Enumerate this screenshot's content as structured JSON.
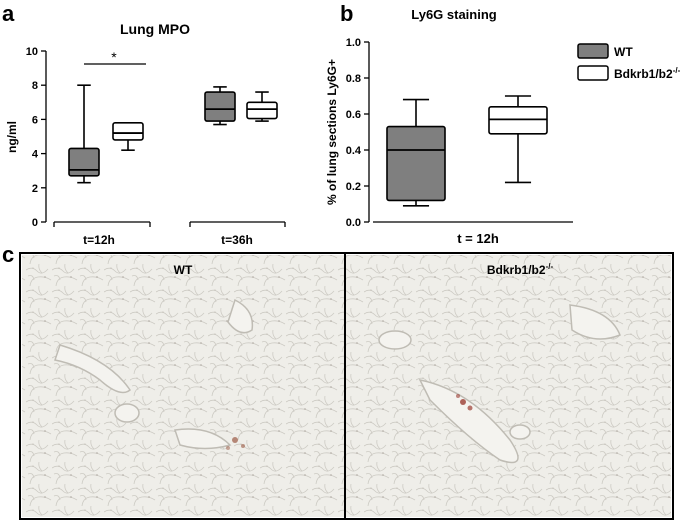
{
  "panel_labels": {
    "a": "a",
    "b": "b",
    "c": "c"
  },
  "legend": {
    "items": [
      {
        "label": "WT",
        "fill": "#7f7f7f"
      },
      {
        "label": "Bdkrb1/b2",
        "superscript": "-/-",
        "fill": "#ffffff"
      }
    ]
  },
  "chart_data": [
    {
      "type": "box",
      "title": "Lung MPO",
      "ylabel": "ng/ml",
      "xlabel": "",
      "ylim": [
        0,
        10
      ],
      "yticks": [
        0,
        2,
        4,
        6,
        8,
        10
      ],
      "groups": [
        {
          "label": "t=12h",
          "boxes": [
            {
              "series": "WT",
              "min": 2.3,
              "q1": 2.7,
              "median": 3.05,
              "q3": 4.3,
              "max": 8.0
            },
            {
              "series": "Bdkrb1/b2-/-",
              "min": 4.2,
              "q1": 4.8,
              "median": 5.2,
              "q3": 5.8,
              "max": 5.8
            }
          ]
        },
        {
          "label": "t=36h",
          "boxes": [
            {
              "series": "WT",
              "min": 5.7,
              "q1": 5.9,
              "median": 6.6,
              "q3": 7.6,
              "max": 7.9
            },
            {
              "series": "Bdkrb1/b2-/-",
              "min": 5.9,
              "q1": 6.05,
              "median": 6.6,
              "q3": 7.0,
              "max": 7.6
            }
          ]
        }
      ],
      "annotation": {
        "text": "*",
        "between": [
          "t=12h WT",
          "t=12h Bdkrb1/b2-/-"
        ]
      }
    },
    {
      "type": "box",
      "title": "Ly6G staining",
      "ylabel": "% of lung sections Ly6G+",
      "xlabel": "t = 12h",
      "ylim": [
        0,
        1.0
      ],
      "yticks": [
        "0.0",
        "0.2",
        "0.4",
        "0.6",
        "0.8",
        "1.0"
      ],
      "boxes": [
        {
          "series": "WT",
          "min": 0.09,
          "q1": 0.12,
          "median": 0.4,
          "q3": 0.53,
          "max": 0.68
        },
        {
          "series": "Bdkrb1/b2-/-",
          "min": 0.22,
          "q1": 0.49,
          "median": 0.57,
          "q3": 0.64,
          "max": 0.7
        }
      ]
    }
  ],
  "micrographs": [
    {
      "label": "WT"
    },
    {
      "label": "Bdkrb1/b2",
      "superscript": "-/-"
    }
  ]
}
